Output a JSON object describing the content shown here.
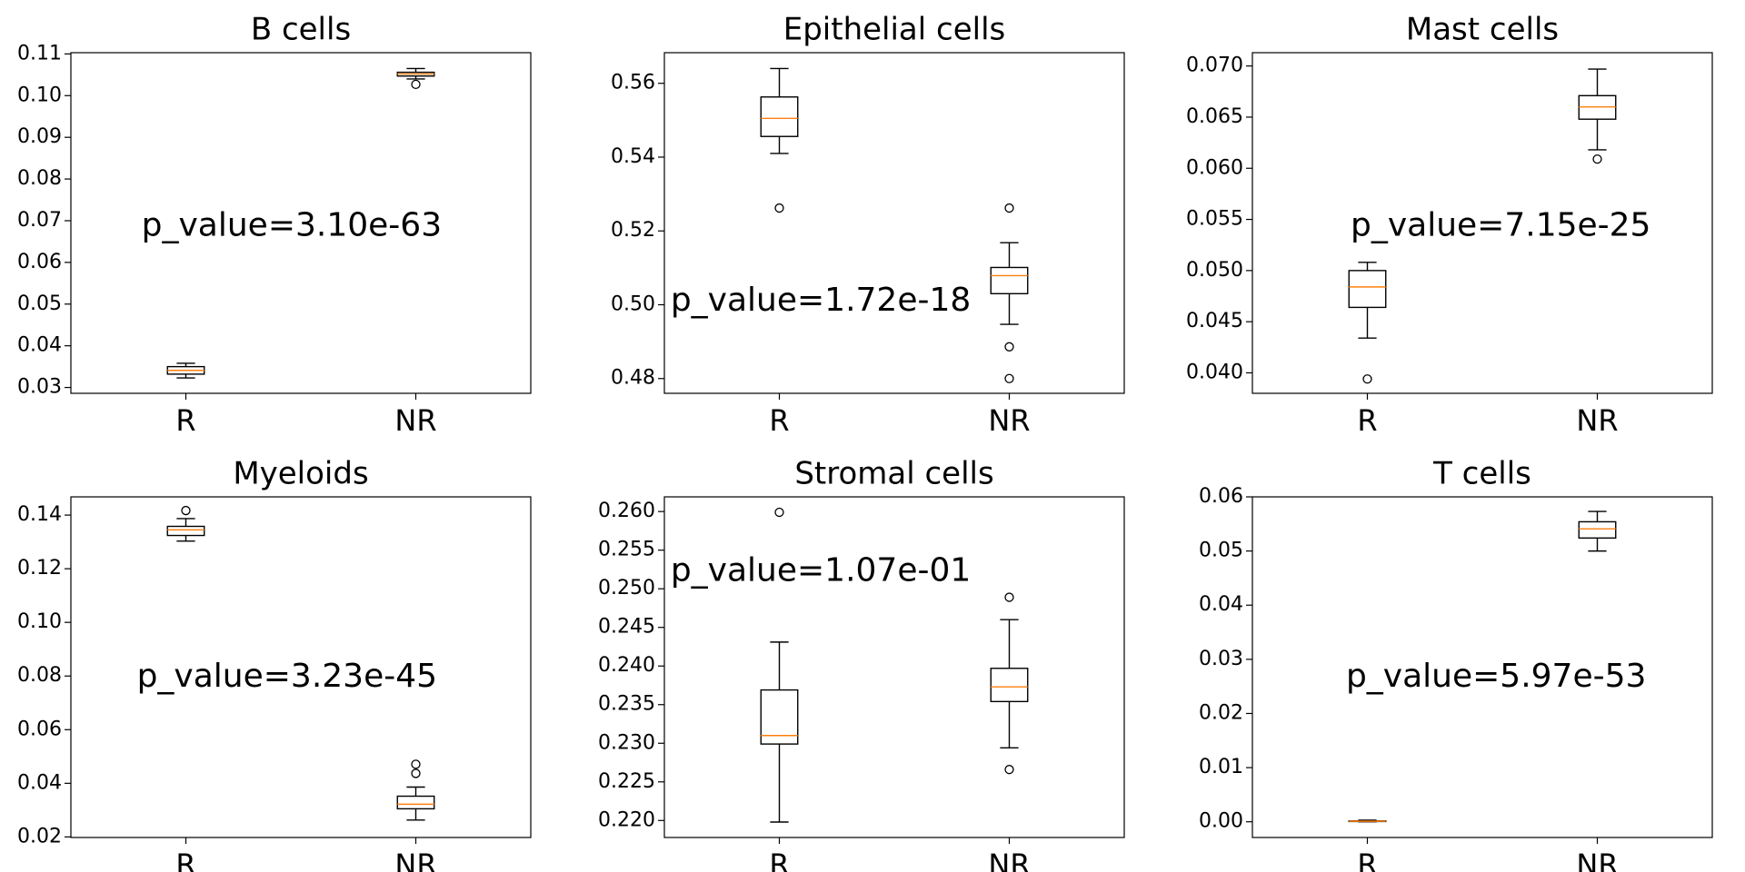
{
  "chart_data": [
    {
      "type": "box",
      "title": "B cells",
      "categories": [
        "R",
        "NR"
      ],
      "color": "#000000",
      "median_color": "#ff7f0e",
      "annotation": "p_value=3.10e-63",
      "boxes": [
        {
          "whisker_low": 0.0323,
          "q1": 0.0332,
          "median": 0.0341,
          "q3": 0.035,
          "whisker_high": 0.0358,
          "outliers": []
        },
        {
          "whisker_low": 0.104,
          "q1": 0.1047,
          "median": 0.1052,
          "q3": 0.1056,
          "whisker_high": 0.1065,
          "outliers": [
            0.1027
          ]
        }
      ],
      "ylim": [
        0.0286,
        0.1103
      ],
      "yticks": [
        0.03,
        0.04,
        0.05,
        0.06,
        0.07,
        0.08,
        0.09,
        {
          "value": 0.1,
          "label": "0.10"
        },
        0.11
      ]
    },
    {
      "type": "box",
      "title": "Epithelial cells",
      "categories": [
        "R",
        "NR"
      ],
      "color": "#000000",
      "median_color": "#ff7f0e",
      "annotation": "p_value=1.72e-18",
      "boxes": [
        {
          "whisker_low": 0.541,
          "q1": 0.5456,
          "median": 0.5505,
          "q3": 0.5563,
          "whisker_high": 0.564,
          "outliers": [
            0.5262
          ]
        },
        {
          "whisker_low": 0.4947,
          "q1": 0.503,
          "median": 0.5079,
          "q3": 0.5101,
          "whisker_high": 0.5168,
          "outliers": [
            0.5262,
            0.4886,
            0.48
          ]
        }
      ],
      "ylim": [
        0.476,
        0.5683
      ],
      "yticks": [
        0.48,
        {
          "value": 0.5,
          "label": "0.50"
        },
        0.52,
        0.54,
        0.56
      ]
    },
    {
      "type": "box",
      "title": "Mast cells",
      "categories": [
        "R",
        "NR"
      ],
      "color": "#000000",
      "median_color": "#ff7f0e",
      "annotation": "p_value=7.15e-25",
      "boxes": [
        {
          "whisker_low": 0.0434,
          "q1": 0.0464,
          "median": 0.0484,
          "q3": 0.05,
          "whisker_high": 0.0508,
          "outliers": [
            0.0394
          ]
        },
        {
          "whisker_low": 0.0618,
          "q1": 0.0648,
          "median": 0.066,
          "q3": 0.0671,
          "whisker_high": 0.0697,
          "outliers": [
            0.0609
          ]
        }
      ],
      "ylim": [
        0.038,
        0.0713
      ],
      "yticks": [
        {
          "value": 0.04,
          "label": "0.040"
        },
        0.045,
        {
          "value": 0.05,
          "label": "0.050"
        },
        0.055,
        {
          "value": 0.06,
          "label": "0.060"
        },
        0.065,
        {
          "value": 0.07,
          "label": "0.070"
        }
      ]
    },
    {
      "type": "box",
      "title": "Myeloids",
      "categories": [
        "R",
        "NR"
      ],
      "color": "#000000",
      "median_color": "#ff7f0e",
      "annotation": "p_value=3.23e-45",
      "boxes": [
        {
          "whisker_low": 0.1303,
          "q1": 0.1324,
          "median": 0.1345,
          "q3": 0.1358,
          "whisker_high": 0.1387,
          "outliers": [
            0.1417
          ]
        },
        {
          "whisker_low": 0.0263,
          "q1": 0.0305,
          "median": 0.0322,
          "q3": 0.0352,
          "whisker_high": 0.0386,
          "outliers": [
            0.0471,
            0.0437
          ]
        }
      ],
      "ylim": [
        0.0198,
        0.1468
      ],
      "yticks": [
        0.02,
        0.04,
        0.06,
        0.08,
        {
          "value": 0.1,
          "label": "0.10"
        },
        0.12,
        0.14
      ]
    },
    {
      "type": "box",
      "title": "Stromal cells",
      "categories": [
        "R",
        "NR"
      ],
      "color": "#000000",
      "median_color": "#ff7f0e",
      "annotation": "p_value=1.07e-01",
      "boxes": [
        {
          "whisker_low": 0.2198,
          "q1": 0.2299,
          "median": 0.231,
          "q3": 0.2369,
          "whisker_high": 0.2431,
          "outliers": [
            0.2599
          ]
        },
        {
          "whisker_low": 0.2294,
          "q1": 0.2354,
          "median": 0.2373,
          "q3": 0.2397,
          "whisker_high": 0.246,
          "outliers": [
            0.2489,
            0.2266
          ]
        }
      ],
      "ylim": [
        0.2178,
        0.2619
      ],
      "yticks": [
        {
          "value": 0.22,
          "label": "0.220"
        },
        0.225,
        {
          "value": 0.23,
          "label": "0.230"
        },
        0.235,
        {
          "value": 0.24,
          "label": "0.240"
        },
        0.245,
        {
          "value": 0.25,
          "label": "0.250"
        },
        0.255,
        {
          "value": 0.26,
          "label": "0.260"
        }
      ]
    },
    {
      "type": "box",
      "title": "T cells",
      "categories": [
        "R",
        "NR"
      ],
      "color": "#000000",
      "median_color": "#ff7f0e",
      "annotation": "p_value=5.97e-53",
      "boxes": [
        {
          "whisker_low": 0,
          "q1": 5e-05,
          "median": 0.0001,
          "q3": 0.00015,
          "whisker_high": 0.0003,
          "outliers": []
        },
        {
          "whisker_low": 0.05,
          "q1": 0.0524,
          "median": 0.0541,
          "q3": 0.0554,
          "whisker_high": 0.0573,
          "outliers": []
        }
      ],
      "ylim": [
        -0.0029,
        0.06
      ],
      "yticks": [
        {
          "value": 0,
          "label": "0.00"
        },
        0.01,
        0.02,
        0.03,
        0.04,
        0.05,
        0.06
      ]
    }
  ]
}
